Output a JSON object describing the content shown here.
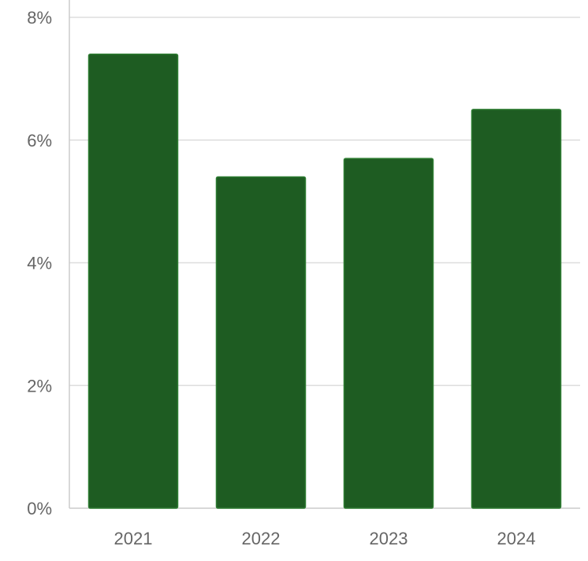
{
  "chart_data": {
    "type": "bar",
    "categories": [
      "2021",
      "2022",
      "2023",
      "2024"
    ],
    "values": [
      7.4,
      5.4,
      5.7,
      6.5
    ],
    "ylim": [
      0,
      8
    ],
    "yticks": [
      0,
      2,
      4,
      6,
      8
    ],
    "ytick_labels": [
      "0%",
      "2%",
      "4%",
      "6%",
      "8%"
    ],
    "grid": true,
    "legend": "none",
    "colors": {
      "bar_fill": "#1e5c22",
      "bar_stroke": "#2e7d32",
      "grid": "#dddddd",
      "axis": "#cccccc",
      "text": "#666666"
    }
  }
}
